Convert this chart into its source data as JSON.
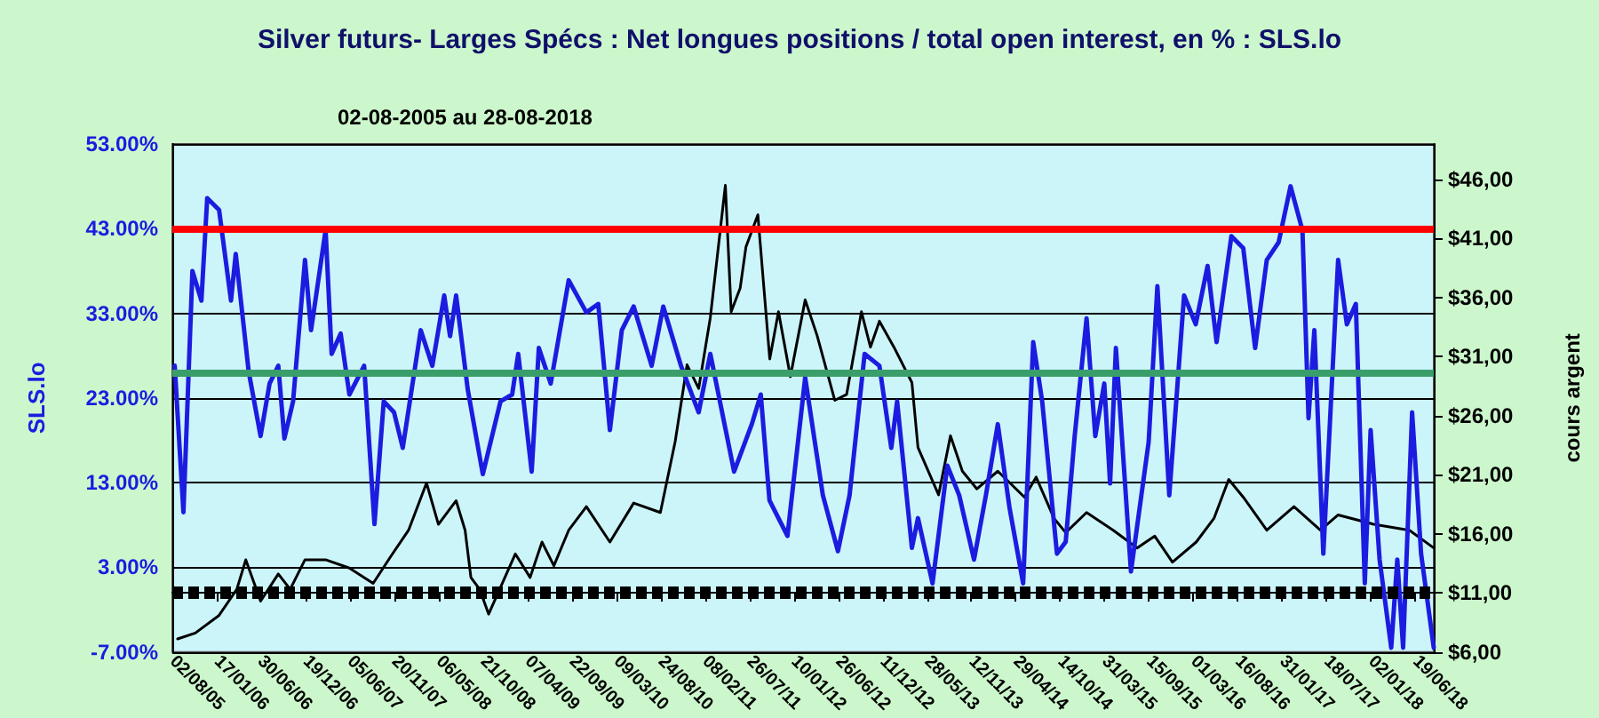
{
  "chart_data": {
    "type": "line",
    "title": "Silver futurs- Larges Spécs : Net longues positions / total open interest, en % : SLS.lo",
    "subtitle": "02-08-2005 au 28-08-2018",
    "ylabel": "SLS.lo",
    "y2label": "cours argent",
    "xlim": [
      "2005-08-02",
      "2018-08-28"
    ],
    "xticks": [
      {
        "value": "2005-08-02",
        "label": "02/08/05"
      },
      {
        "value": "2006-01-17",
        "label": "17/01/06"
      },
      {
        "value": "2006-06-30",
        "label": "30/06/06"
      },
      {
        "value": "2006-12-19",
        "label": "19/12/06"
      },
      {
        "value": "2007-06-05",
        "label": "05/06/07"
      },
      {
        "value": "2007-11-20",
        "label": "20/11/07"
      },
      {
        "value": "2008-05-06",
        "label": "06/05/08"
      },
      {
        "value": "2008-10-21",
        "label": "21/10/08"
      },
      {
        "value": "2009-04-07",
        "label": "07/04/09"
      },
      {
        "value": "2009-09-22",
        "label": "22/09/09"
      },
      {
        "value": "2010-03-09",
        "label": "09/03/10"
      },
      {
        "value": "2010-08-24",
        "label": "24/08/10"
      },
      {
        "value": "2011-02-08",
        "label": "08/02/11"
      },
      {
        "value": "2011-07-26",
        "label": "26/07/11"
      },
      {
        "value": "2012-01-10",
        "label": "10/01/12"
      },
      {
        "value": "2012-06-26",
        "label": "26/06/12"
      },
      {
        "value": "2012-12-11",
        "label": "11/12/12"
      },
      {
        "value": "2013-05-28",
        "label": "28/05/13"
      },
      {
        "value": "2013-11-12",
        "label": "12/11/13"
      },
      {
        "value": "2014-04-29",
        "label": "29/04/14"
      },
      {
        "value": "2014-10-14",
        "label": "14/10/14"
      },
      {
        "value": "2015-03-31",
        "label": "31/03/15"
      },
      {
        "value": "2015-09-15",
        "label": "15/09/15"
      },
      {
        "value": "2016-03-01",
        "label": "01/03/16"
      },
      {
        "value": "2016-08-16",
        "label": "16/08/16"
      },
      {
        "value": "2017-01-31",
        "label": "31/01/17"
      },
      {
        "value": "2017-07-18",
        "label": "18/07/17"
      },
      {
        "value": "2018-01-02",
        "label": "02/01/18"
      },
      {
        "value": "2018-06-19",
        "label": "19/06/18"
      }
    ],
    "ylim": [
      -7,
      53
    ],
    "yticks": [
      {
        "value": -7,
        "label": "-7.00%"
      },
      {
        "value": 3,
        "label": "3.00%"
      },
      {
        "value": 13,
        "label": "13.00%"
      },
      {
        "value": 23,
        "label": "23.00%"
      },
      {
        "value": 33,
        "label": "33.00%"
      },
      {
        "value": 43,
        "label": "43.00%"
      },
      {
        "value": 53,
        "label": "53.00%"
      }
    ],
    "y2lim": [
      6,
      49
    ],
    "y2ticks": [
      {
        "value": 6,
        "label": "$6,00"
      },
      {
        "value": 11,
        "label": "$11,00"
      },
      {
        "value": 16,
        "label": "$16,00"
      },
      {
        "value": 21,
        "label": "$21,00"
      },
      {
        "value": 26,
        "label": "$26,00"
      },
      {
        "value": 31,
        "label": "$31,00"
      },
      {
        "value": 36,
        "label": "$36,00"
      },
      {
        "value": 41,
        "label": "$41,00"
      },
      {
        "value": 46,
        "label": "$46,00"
      }
    ],
    "grid": "y",
    "marker": "none",
    "line_style": "solid",
    "ref_lines": [
      {
        "axis": "y",
        "value": 43,
        "color": "#ff0000",
        "line_style": "solid"
      },
      {
        "axis": "y",
        "value": 26,
        "color": "#3a9e6a",
        "line_style": "solid"
      },
      {
        "axis": "y",
        "value": 0,
        "color": "#000000",
        "line_style": "dashed"
      }
    ],
    "series": [
      {
        "color": "#1c1ce0",
        "x": [
          "2005-08-11",
          "2005-09-13",
          "2005-10-17",
          "2005-11-20",
          "2005-12-12",
          "2006-01-26",
          "2006-03-12",
          "2006-03-30",
          "2006-05-18",
          "2006-07-02",
          "2006-08-05",
          "2006-09-07",
          "2006-09-30",
          "2006-11-02",
          "2006-12-17",
          "2007-01-09",
          "2007-03-05",
          "2007-03-28",
          "2007-05-01",
          "2007-06-03",
          "2007-07-29",
          "2007-09-06",
          "2007-10-11",
          "2007-11-19",
          "2007-12-22",
          "2008-02-28",
          "2008-04-12",
          "2008-05-27",
          "2008-06-18",
          "2008-07-11",
          "2008-08-24",
          "2008-10-20",
          "2008-12-26",
          "2009-02-08",
          "2009-03-03",
          "2009-04-23",
          "2009-05-20",
          "2009-07-04",
          "2009-09-10",
          "2009-11-16",
          "2009-12-31",
          "2010-02-13",
          "2010-03-30",
          "2010-05-14",
          "2010-07-21",
          "2010-09-03",
          "2010-11-09",
          "2011-01-15",
          "2011-02-28",
          "2011-05-29",
          "2011-08-04",
          "2011-09-07",
          "2011-10-10",
          "2011-12-17",
          "2012-02-22",
          "2012-04-29",
          "2012-06-25",
          "2012-08-08",
          "2012-10-04",
          "2012-11-29",
          "2013-01-13",
          "2013-02-04",
          "2013-04-01",
          "2013-04-24",
          "2013-06-18",
          "2013-08-13",
          "2013-09-27",
          "2013-11-22",
          "2014-01-06",
          "2014-02-20",
          "2014-04-05",
          "2014-05-27",
          "2014-07-04",
          "2014-08-07",
          "2014-10-02",
          "2014-11-04",
          "2014-12-08",
          "2015-01-22",
          "2015-02-24",
          "2015-03-30",
          "2015-04-21",
          "2015-05-13",
          "2015-07-09",
          "2015-09-14",
          "2015-10-17",
          "2015-12-01",
          "2016-01-26",
          "2016-03-10",
          "2016-04-24",
          "2016-05-28",
          "2016-07-23",
          "2016-09-06",
          "2016-10-21",
          "2016-12-04",
          "2017-01-18",
          "2017-03-04",
          "2017-04-18",
          "2017-05-11",
          "2017-06-02",
          "2017-07-06",
          "2017-08-31",
          "2017-10-03",
          "2017-11-06",
          "2017-12-10",
          "2018-01-01",
          "2018-02-04",
          "2018-03-20",
          "2018-04-12",
          "2018-05-04",
          "2018-06-07",
          "2018-07-11",
          "2018-08-28"
        ],
        "values": [
          26.8,
          9.5,
          38,
          34.5,
          46.6,
          45.2,
          34.5,
          40,
          26.1,
          18.5,
          24.7,
          26.8,
          18.2,
          22.6,
          39.3,
          31,
          42.8,
          28.2,
          30.6,
          23.4,
          26.8,
          8.1,
          22.6,
          21.3,
          17.1,
          31,
          26.8,
          35.1,
          30.3,
          35.1,
          24,
          14,
          22.6,
          23.4,
          28.2,
          14.3,
          28.9,
          24.7,
          36.9,
          33.1,
          34.1,
          19.2,
          31,
          33.8,
          26.8,
          33.8,
          26.8,
          21.3,
          28.2,
          14.3,
          19.9,
          23.4,
          10.9,
          6.7,
          25.4,
          11.5,
          4.9,
          11.5,
          28.2,
          26.8,
          17.1,
          22.6,
          5.3,
          8.8,
          1.1,
          15,
          11.5,
          3.9,
          11.5,
          19.9,
          10.1,
          1.1,
          29.6,
          22.6,
          4.6,
          6,
          18.5,
          32.4,
          18.5,
          24.7,
          12.9,
          28.9,
          2.5,
          17.8,
          36.2,
          11.5,
          35.1,
          31.7,
          38.6,
          29.6,
          42.1,
          40.7,
          28.9,
          39.3,
          41.4,
          48,
          42.8,
          20.6,
          31,
          4.6,
          39.3,
          31.7,
          34.1,
          1.1,
          19.2,
          3.9,
          -6.5,
          3.9,
          -6.5,
          21.3,
          4.6,
          -6.5
        ]
      },
      {
        "color": "#000000",
        "axis": "y2",
        "x": [
          "2005-08-22",
          "2005-10-28",
          "2006-01-26",
          "2006-04-03",
          "2006-05-07",
          "2006-07-02",
          "2006-09-07",
          "2006-10-22",
          "2006-12-17",
          "2007-03-05",
          "2007-06-03",
          "2007-09-01",
          "2007-11-07",
          "2008-01-13",
          "2008-03-21",
          "2008-05-05",
          "2008-07-11",
          "2008-08-14",
          "2008-09-05",
          "2008-10-08",
          "2008-11-11",
          "2009-02-20",
          "2009-04-17",
          "2009-06-01",
          "2009-07-16",
          "2009-09-10",
          "2009-11-16",
          "2010-02-13",
          "2010-05-14",
          "2010-08-23",
          "2010-10-18",
          "2010-12-02",
          "2011-01-15",
          "2011-02-28",
          "2011-04-26",
          "2011-05-18",
          "2011-06-21",
          "2011-07-13",
          "2011-08-27",
          "2011-10-11",
          "2011-11-13",
          "2011-12-28",
          "2012-02-22",
          "2012-04-07",
          "2012-06-13",
          "2012-07-28",
          "2012-09-22",
          "2012-10-26",
          "2012-11-29",
          "2013-01-23",
          "2013-04-01",
          "2013-04-24",
          "2013-07-11",
          "2013-08-25",
          "2013-10-09",
          "2013-12-03",
          "2014-02-20",
          "2014-06-01",
          "2014-07-15",
          "2014-09-21",
          "2014-11-04",
          "2015-01-22",
          "2015-05-03",
          "2015-08-01",
          "2015-10-07",
          "2015-12-13",
          "2016-03-12",
          "2016-05-18",
          "2016-07-13",
          "2016-09-06",
          "2016-12-04",
          "2017-03-17",
          "2017-06-25",
          "2017-08-31",
          "2018-01-13",
          "2018-05-28",
          "2018-08-28"
        ],
        "values": [
          7.1,
          7.6,
          9.1,
          11.3,
          13.8,
          10.3,
          12.6,
          11.3,
          13.8,
          13.8,
          13.1,
          11.8,
          14.1,
          16.3,
          20.3,
          16.8,
          18.8,
          16.3,
          12.3,
          11.3,
          9.2,
          14.3,
          12.3,
          15.3,
          13.3,
          16.3,
          18.3,
          15.3,
          18.6,
          17.8,
          23.8,
          30.3,
          28.3,
          34.3,
          45.5,
          34.8,
          36.8,
          40.3,
          43,
          30.8,
          34.8,
          29.3,
          35.8,
          32.8,
          27.3,
          27.8,
          34.8,
          31.8,
          34,
          31.8,
          28.8,
          23.3,
          19.3,
          24.3,
          21.3,
          19.8,
          21.3,
          19.1,
          20.8,
          17.3,
          16.1,
          17.8,
          16.3,
          14.8,
          15.8,
          13.6,
          15.3,
          17.3,
          20.6,
          19.1,
          16.3,
          18.3,
          16.3,
          17.6,
          16.8,
          16.3,
          14.8
        ]
      }
    ]
  }
}
